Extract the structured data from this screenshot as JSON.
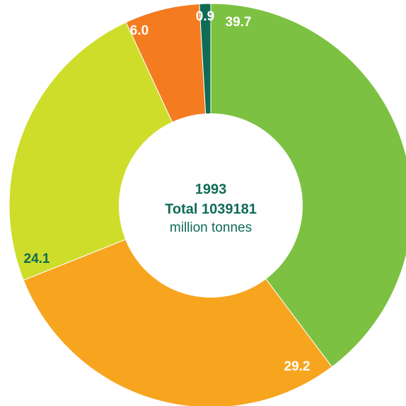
{
  "chart_data": {
    "type": "donut",
    "categories": [
      null,
      null,
      null,
      null,
      null
    ],
    "values": [
      39.7,
      29.2,
      24.1,
      6.0,
      0.9
    ],
    "value_labels": [
      "39.7",
      "29.2",
      "24.1",
      "6.0",
      "0.9"
    ],
    "colors": [
      "#7cc142",
      "#f7a51f",
      "#cedd2a",
      "#f47b20",
      "#0e6b55"
    ],
    "label_colors": [
      "#ffffff",
      "#ffffff",
      "#0e6b55",
      "#ffffff",
      "#ffffff"
    ],
    "center_text": [
      "1993",
      "Total 1039181",
      "million tonnes"
    ]
  }
}
